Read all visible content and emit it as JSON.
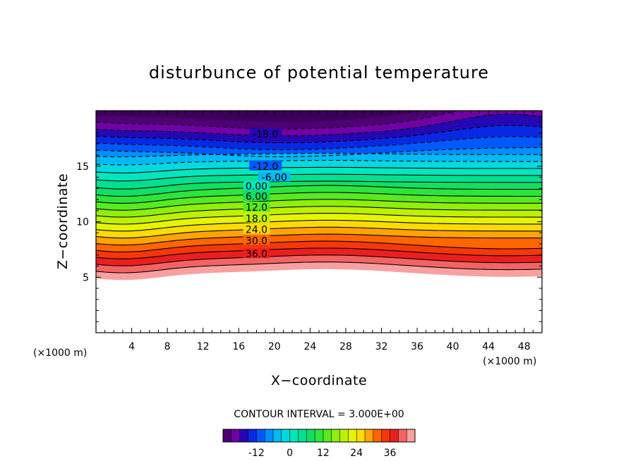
{
  "chart_data": {
    "type": "contour",
    "title": "disturbunce of potential temperature",
    "xlabel": "X−coordinate",
    "ylabel": "Z−coordinate",
    "x_unit": "(×1000 m)",
    "y_unit": "(×1000 m)",
    "xlim": [
      0,
      50
    ],
    "ylim": [
      0,
      20
    ],
    "x_ticks": [
      4,
      8,
      12,
      16,
      20,
      24,
      28,
      32,
      36,
      40,
      44,
      48
    ],
    "y_ticks": [
      5,
      10,
      15
    ],
    "contour_interval_text": "CONTOUR INTERVAL = 3.000E+00",
    "contour_interval": 3.0,
    "value_range": [
      -24,
      45
    ],
    "negative_contours": "dashed",
    "contour_labels": [
      {
        "text": "-18.0",
        "value": -18,
        "x": 19,
        "z": 17.9
      },
      {
        "text": "-12.0",
        "value": -12,
        "x": 19,
        "z": 15.0
      },
      {
        "text": "-6.00",
        "value": -6,
        "x": 20,
        "z": 14.0
      },
      {
        "text": "0.00",
        "value": 0,
        "x": 18,
        "z": 13.2
      },
      {
        "text": "6.00",
        "value": 6,
        "x": 18,
        "z": 12.3
      },
      {
        "text": "12.0",
        "value": 12,
        "x": 18,
        "z": 11.3
      },
      {
        "text": "18.0",
        "value": 18,
        "x": 18,
        "z": 10.3
      },
      {
        "text": "24.0",
        "value": 24,
        "x": 18,
        "z": 9.3
      },
      {
        "text": "30.0",
        "value": 30,
        "x": 18,
        "z": 8.3
      },
      {
        "text": "36.0",
        "value": 36,
        "x": 18,
        "z": 7.1
      }
    ],
    "colorbar": {
      "min": -24,
      "max": 45,
      "step": 3,
      "tick_labels": [
        "-12",
        "0",
        "12",
        "24",
        "36"
      ],
      "tick_values": [
        -12,
        0,
        12,
        24,
        36
      ]
    }
  }
}
